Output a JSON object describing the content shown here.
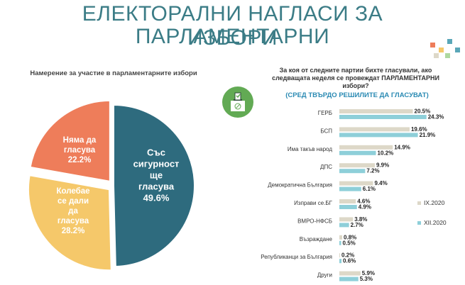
{
  "header": {
    "title_line1": "ЕЛЕКТОРАЛНИ НАГЛАСИ ЗА ПАРЛАМЕНТАРНИ",
    "title_line2": "ИЗБОРИ"
  },
  "pie": {
    "title": "Намерение за участие в парламентарните избори",
    "slices": [
      {
        "label_lines": [
          "Със",
          "сигурност",
          "ще",
          "гласува"
        ],
        "value": 49.6,
        "value_text": "49.6%",
        "color": "#2e6b7e",
        "text_color": "#ffffff"
      },
      {
        "label_lines": [
          "Колебае",
          "се дали",
          "да",
          "гласува"
        ],
        "value": 28.2,
        "value_text": "28.2%",
        "color": "#f5c86a",
        "text_color": "#ffffff"
      },
      {
        "label_lines": [
          "Няма да",
          "гласува"
        ],
        "value": 22.2,
        "value_text": "22.2%",
        "color": "#ee7d5a",
        "text_color": "#ffffff"
      }
    ]
  },
  "question": {
    "line1": "За коя от следните партии бихте гласували, ако",
    "line2": "следващата неделя се провеждат  ПАРЛАМЕНТАРНИ",
    "line3": "избори?",
    "subtitle": "(СРЕД ТВЪРДО РЕШИЛИТЕ ДА ГЛАСУВАТ)"
  },
  "icon": {
    "name": "ballot-box-icon",
    "color": "#62aa54"
  },
  "chart_data": {
    "type": "bar",
    "orientation": "horizontal",
    "title": "За коя от следните партии бихте гласували, ако следващата неделя се провеждат  ПАРЛАМЕНТАРНИ избори?",
    "categories": [
      "ГЕРБ",
      "БСП",
      "Има такъв народ",
      "ДПС",
      "Демократична България",
      "Изправи се.БГ",
      "ВМРО-НФСБ",
      "Възраждане",
      "Републиканци за България",
      "Други"
    ],
    "series": [
      {
        "name": "IX.2020",
        "color": "#ddd8c8",
        "values": [
          20.5,
          19.6,
          14.9,
          9.9,
          9.4,
          4.6,
          3.8,
          0.8,
          0.2,
          5.9
        ],
        "labels": [
          "20.5%",
          "19.6%",
          "14.9%",
          "9.9%",
          "9.4%",
          "4.6%",
          "3.8%",
          "0.8%",
          "0.2%",
          "5.9%"
        ]
      },
      {
        "name": "XII.2020",
        "color": "#8ecfd9",
        "values": [
          24.3,
          21.9,
          10.2,
          7.2,
          6.1,
          4.9,
          2.7,
          0.5,
          0.6,
          5.3
        ],
        "labels": [
          "24.3%",
          "21.9%",
          "10.2%",
          "7.2%",
          "6.1%",
          "4.9%",
          "2.7%",
          "0.5%",
          "0.6%",
          "5.3%"
        ]
      }
    ],
    "xlim": [
      0,
      30
    ],
    "legend_position": "right"
  }
}
